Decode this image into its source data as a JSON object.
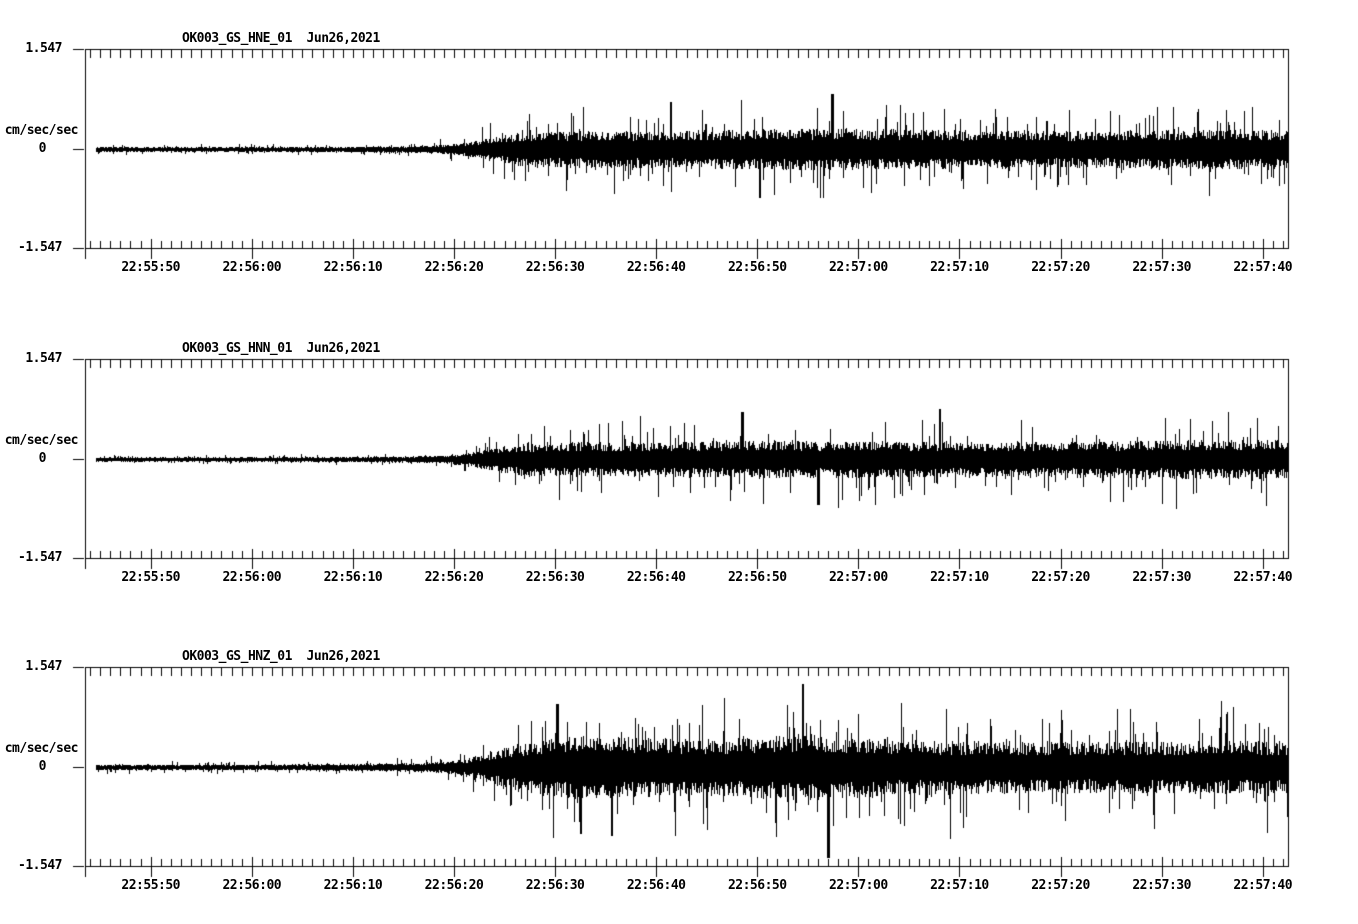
{
  "chart_data": {
    "type": "line",
    "subtype": "seismogram-waveform",
    "station": "OK003",
    "network": "GS",
    "date_label": "Jun26,2021",
    "ylabel": "cm/sec/sec",
    "ylim": [
      -1.547,
      1.547
    ],
    "y_tick_labels": [
      "1.547",
      "0",
      "-1.547"
    ],
    "x_tick_labels": [
      "22:55:50",
      "22:56:00",
      "22:56:10",
      "22:56:20",
      "22:56:30",
      "22:56:40",
      "22:56:50",
      "22:57:00",
      "22:57:10",
      "22:57:20",
      "22:57:30",
      "22:57:40"
    ],
    "x_major_interval_s": 10,
    "x_minor_interval_s": 1,
    "time_window": {
      "start": "22:55:43",
      "end": "22:57:42"
    },
    "envelope_time_ref": "seconds after 22:55:40",
    "grid": "off",
    "legend": "none",
    "trace_color": "#000000",
    "background_color": "#ffffff",
    "panels": [
      {
        "channel": "HNE",
        "title": "OK003_GS_HNE_01  Jun26,2021",
        "seed": 101,
        "envelope": [
          [
            3.5,
            0.035
          ],
          [
            20,
            0.035
          ],
          [
            30,
            0.04
          ],
          [
            36,
            0.05
          ],
          [
            39,
            0.07
          ],
          [
            41,
            0.1
          ],
          [
            43,
            0.16
          ],
          [
            45,
            0.24
          ],
          [
            47,
            0.29
          ],
          [
            52,
            0.3
          ],
          [
            60,
            0.3
          ],
          [
            68,
            0.32
          ],
          [
            75,
            0.34
          ],
          [
            82,
            0.33
          ],
          [
            90,
            0.31
          ],
          [
            100,
            0.3
          ],
          [
            110,
            0.31
          ],
          [
            122.5,
            0.32
          ]
        ],
        "spikes": [
          {
            "t": 61.4,
            "v": 0.72
          },
          {
            "t": 77.4,
            "v": 0.85
          },
          {
            "t": 70.2,
            "v": -0.75
          }
        ]
      },
      {
        "channel": "HNN",
        "title": "OK003_GS_HNN_01  Jun26,2021",
        "seed": 202,
        "envelope": [
          [
            3.5,
            0.03
          ],
          [
            20,
            0.03
          ],
          [
            30,
            0.038
          ],
          [
            36,
            0.048
          ],
          [
            39,
            0.065
          ],
          [
            41,
            0.095
          ],
          [
            43,
            0.15
          ],
          [
            45,
            0.22
          ],
          [
            47,
            0.27
          ],
          [
            52,
            0.28
          ],
          [
            60,
            0.28
          ],
          [
            68,
            0.3
          ],
          [
            75,
            0.31
          ],
          [
            82,
            0.3
          ],
          [
            90,
            0.29
          ],
          [
            100,
            0.29
          ],
          [
            110,
            0.31
          ],
          [
            122.5,
            0.32
          ]
        ],
        "spikes": [
          {
            "t": 68.5,
            "v": 0.72
          },
          {
            "t": 88.0,
            "v": 0.78
          },
          {
            "t": 76.0,
            "v": -0.7
          }
        ]
      },
      {
        "channel": "HNZ",
        "title": "OK003_GS_HNZ_01  Jun26,2021",
        "seed": 303,
        "envelope": [
          [
            3.5,
            0.04
          ],
          [
            20,
            0.04
          ],
          [
            30,
            0.05
          ],
          [
            36,
            0.065
          ],
          [
            39,
            0.09
          ],
          [
            41,
            0.14
          ],
          [
            43,
            0.22
          ],
          [
            45,
            0.33
          ],
          [
            47,
            0.42
          ],
          [
            50,
            0.48
          ],
          [
            53,
            0.52
          ],
          [
            57,
            0.49
          ],
          [
            62,
            0.47
          ],
          [
            68,
            0.48
          ],
          [
            72,
            0.52
          ],
          [
            75,
            0.56
          ],
          [
            78,
            0.5
          ],
          [
            85,
            0.45
          ],
          [
            95,
            0.43
          ],
          [
            105,
            0.42
          ],
          [
            115,
            0.43
          ],
          [
            122.5,
            0.44
          ]
        ],
        "spikes": [
          {
            "t": 50.2,
            "v": 0.98
          },
          {
            "t": 52.5,
            "v": -1.02
          },
          {
            "t": 55.6,
            "v": -1.05
          },
          {
            "t": 74.5,
            "v": 1.28
          },
          {
            "t": 77.0,
            "v": -1.4
          }
        ]
      }
    ]
  }
}
